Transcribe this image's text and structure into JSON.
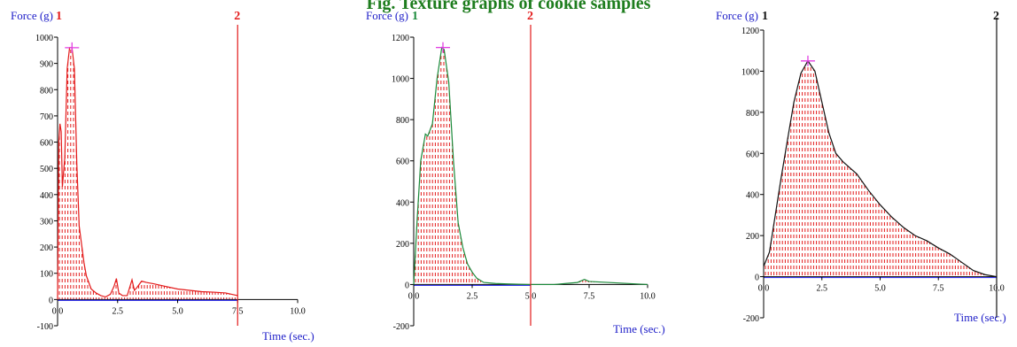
{
  "figure_title": "Fig. Texture graphs of cookie samples",
  "chart_data": [
    {
      "type": "area",
      "ylabel": "Force (g)",
      "xlabel": "Time (sec.)",
      "ylim": [
        -100,
        1000
      ],
      "xlim": [
        0,
        10
      ],
      "yticks": [
        -100,
        0,
        100,
        200,
        300,
        400,
        500,
        600,
        700,
        800,
        900,
        1000
      ],
      "xticks": [
        "0.0",
        "2.5",
        "5.0",
        "7.5",
        "10.0"
      ],
      "marker_labels": [
        "1",
        "2"
      ],
      "markers_x": [
        0,
        7.5
      ],
      "peak": {
        "x": 0.6,
        "y": 960
      },
      "colors": {
        "line": "#e31a1a",
        "fill": "#e31a1a",
        "marker1": "#e31a1a",
        "marker2": "#e31a1a",
        "label_main": "#1e1ec8"
      },
      "series": [
        {
          "x": [
            0,
            0.05,
            0.1,
            0.15,
            0.2,
            0.3,
            0.4,
            0.5,
            0.6,
            0.7,
            0.8,
            0.9,
            1.0,
            1.1,
            1.2,
            1.4,
            1.6,
            1.8,
            2.0,
            2.2,
            2.35,
            2.45,
            2.55,
            2.7,
            2.9,
            3.1,
            3.2,
            3.3,
            3.5,
            3.7,
            4.0,
            4.5,
            5.0,
            5.5,
            6.0,
            6.5,
            7.0,
            7.5
          ],
          "y": [
            0,
            600,
            670,
            640,
            430,
            540,
            880,
            960,
            960,
            880,
            520,
            280,
            210,
            140,
            90,
            40,
            25,
            15,
            10,
            20,
            50,
            80,
            25,
            15,
            15,
            75,
            35,
            45,
            70,
            65,
            60,
            50,
            40,
            35,
            30,
            28,
            25,
            15
          ]
        }
      ]
    },
    {
      "type": "area",
      "ylabel": "Force (g)",
      "xlabel": "Time (sec.)",
      "ylim": [
        -200,
        1200
      ],
      "xlim": [
        0,
        10
      ],
      "yticks": [
        -200,
        0,
        200,
        400,
        600,
        800,
        1000,
        1200
      ],
      "xticks": [
        "0.0",
        "2.5",
        "5.0",
        "7.5",
        "10.0"
      ],
      "marker_labels": [
        "1",
        "2"
      ],
      "markers_x": [
        0,
        5
      ],
      "peak": {
        "x": 1.25,
        "y": 1150
      },
      "colors": {
        "line": "#1a8a3a",
        "fill": "#e31a1a",
        "marker1": "#1a8a3a",
        "marker2": "#e31a1a",
        "label_main": "#1e1ec8"
      },
      "series": [
        {
          "x": [
            0,
            0.15,
            0.3,
            0.5,
            0.6,
            0.8,
            1.0,
            1.2,
            1.3,
            1.5,
            1.7,
            1.9,
            2.1,
            2.3,
            2.5,
            2.7,
            3.0,
            3.5,
            4.0,
            5.0,
            6.0,
            6.5,
            7.0,
            7.3,
            7.5,
            10.0
          ],
          "y": [
            0,
            320,
            600,
            730,
            720,
            780,
            1000,
            1150,
            1140,
            980,
            600,
            300,
            180,
            100,
            60,
            30,
            10,
            5,
            3,
            0,
            0,
            5,
            10,
            25,
            15,
            0
          ]
        }
      ]
    },
    {
      "type": "area",
      "ylabel": "Force (g)",
      "xlabel": "Time (sec.)",
      "ylim": [
        -200,
        1200
      ],
      "xlim": [
        0,
        10
      ],
      "yticks": [
        -200,
        0,
        200,
        400,
        600,
        800,
        1000,
        1200
      ],
      "xticks": [
        "0.0",
        "2.5",
        "5.0",
        "7.5",
        "10.0"
      ],
      "marker_labels": [
        "1",
        "2"
      ],
      "markers_x": [
        0,
        10
      ],
      "peak": {
        "x": 1.9,
        "y": 1050
      },
      "colors": {
        "line": "#111111",
        "fill": "#e31a1a",
        "marker1": "#111111",
        "marker2": "#111111",
        "label_main": "#1e1ec8"
      },
      "series": [
        {
          "x": [
            0,
            0.25,
            0.5,
            0.75,
            1.0,
            1.3,
            1.6,
            1.9,
            2.2,
            2.5,
            2.8,
            3.1,
            3.4,
            3.7,
            4.0,
            4.5,
            5.0,
            5.5,
            6.0,
            6.5,
            7.0,
            7.5,
            8.0,
            8.5,
            9.0,
            9.5,
            10.0
          ],
          "y": [
            50,
            120,
            300,
            480,
            650,
            850,
            990,
            1050,
            1000,
            850,
            700,
            600,
            560,
            530,
            500,
            420,
            350,
            290,
            240,
            200,
            175,
            140,
            110,
            70,
            30,
            10,
            0
          ]
        }
      ]
    }
  ]
}
